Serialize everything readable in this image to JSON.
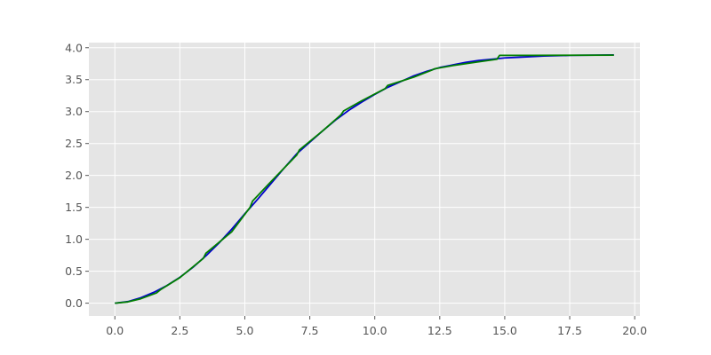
{
  "chart_data": {
    "type": "line",
    "title": "",
    "xlabel": "",
    "ylabel": "",
    "xlim": [
      -1.0,
      20.2
    ],
    "ylim": [
      -0.2,
      4.08
    ],
    "grid": true,
    "background": "#e5e5e5",
    "grid_color": "#ffffff",
    "x_ticks": [
      0.0,
      2.5,
      5.0,
      7.5,
      10.0,
      12.5,
      15.0,
      17.5,
      20.0
    ],
    "x_tick_labels": [
      "0.0",
      "2.5",
      "5.0",
      "7.5",
      "10.0",
      "12.5",
      "15.0",
      "17.5",
      "20.0"
    ],
    "y_ticks": [
      0.0,
      0.5,
      1.0,
      1.5,
      2.0,
      2.5,
      3.0,
      3.5,
      4.0
    ],
    "y_tick_labels": [
      "0.0",
      "0.5",
      "1.0",
      "1.5",
      "2.0",
      "2.5",
      "3.0",
      "3.5",
      "4.0"
    ],
    "series": [
      {
        "color": "#0000cc",
        "x": [
          0.0,
          0.5,
          1.0,
          1.5,
          2.0,
          2.5,
          3.0,
          3.5,
          4.0,
          4.5,
          5.0,
          5.5,
          6.0,
          6.5,
          7.0,
          7.5,
          8.0,
          8.5,
          9.0,
          9.5,
          10.0,
          10.5,
          11.0,
          11.5,
          12.0,
          12.5,
          13.0,
          13.5,
          14.0,
          14.5,
          15.0,
          15.5,
          16.0,
          16.5,
          17.0,
          17.5,
          18.0,
          18.5,
          19.2
        ],
        "y": [
          0.0,
          0.025,
          0.085,
          0.17,
          0.275,
          0.405,
          0.56,
          0.74,
          0.94,
          1.16,
          1.4,
          1.63,
          1.87,
          2.11,
          2.34,
          2.52,
          2.7,
          2.87,
          3.02,
          3.15,
          3.27,
          3.38,
          3.47,
          3.56,
          3.63,
          3.69,
          3.73,
          3.77,
          3.8,
          3.82,
          3.84,
          3.85,
          3.86,
          3.87,
          3.875,
          3.88,
          3.882,
          3.884,
          3.886
        ]
      },
      {
        "color": "#007f00",
        "x": [
          0.0,
          0.5,
          1.0,
          1.6,
          1.75,
          2.5,
          3.4,
          3.5,
          4.5,
          5.2,
          5.3,
          6.0,
          7.0,
          7.1,
          8.0,
          8.7,
          8.8,
          9.5,
          10.4,
          10.5,
          11.5,
          12.2,
          12.3,
          13.0,
          14.0,
          14.7,
          14.8,
          16.0,
          17.5,
          19.2
        ],
        "y": [
          0.0,
          0.02,
          0.07,
          0.16,
          0.21,
          0.4,
          0.7,
          0.78,
          1.12,
          1.5,
          1.6,
          1.9,
          2.32,
          2.4,
          2.7,
          2.95,
          3.01,
          3.17,
          3.36,
          3.41,
          3.54,
          3.65,
          3.67,
          3.72,
          3.78,
          3.82,
          3.88,
          3.88,
          3.882,
          3.884
        ]
      }
    ]
  }
}
